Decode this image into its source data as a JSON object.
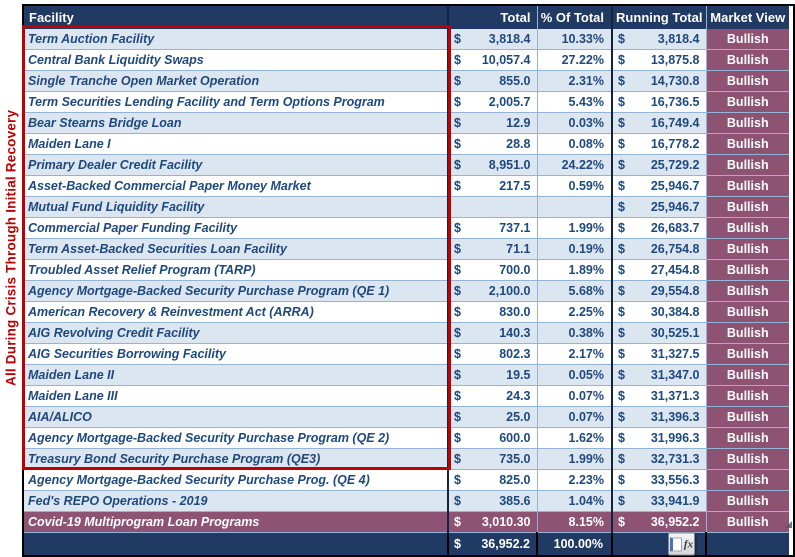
{
  "side_label": "All During Crisis Through Initial Recovery",
  "table": {
    "columns": {
      "facility": "Facility",
      "total": "Total",
      "pct": "% Of Total",
      "running": "Running Total",
      "view": "Market View"
    },
    "rows": [
      {
        "facility": "Term Auction Facility",
        "cur": "$",
        "total": "3,818.4",
        "pct": "10.33%",
        "rcur": "$",
        "running": "3,818.4",
        "view": "Bullish"
      },
      {
        "facility": "Central Bank Liquidity Swaps",
        "cur": "$",
        "total": "10,057.4",
        "pct": "27.22%",
        "rcur": "$",
        "running": "13,875.8",
        "view": "Bullish"
      },
      {
        "facility": "Single Tranche Open Market Operation",
        "cur": "$",
        "total": "855.0",
        "pct": "2.31%",
        "rcur": "$",
        "running": "14,730.8",
        "view": "Bullish"
      },
      {
        "facility": "Term Securities Lending Facility and Term Options Program",
        "cur": "$",
        "total": "2,005.7",
        "pct": "5.43%",
        "rcur": "$",
        "running": "16,736.5",
        "view": "Bullish"
      },
      {
        "facility": "Bear Stearns Bridge Loan",
        "cur": "$",
        "total": "12.9",
        "pct": "0.03%",
        "rcur": "$",
        "running": "16,749.4",
        "view": "Bullish"
      },
      {
        "facility": "Maiden Lane I",
        "cur": "$",
        "total": "28.8",
        "pct": "0.08%",
        "rcur": "$",
        "running": "16,778.2",
        "view": "Bullish"
      },
      {
        "facility": "Primary Dealer Credit Facility",
        "cur": "$",
        "total": "8,951.0",
        "pct": "24.22%",
        "rcur": "$",
        "running": "25,729.2",
        "view": "Bullish"
      },
      {
        "facility": "Asset-Backed Commercial Paper Money Market",
        "cur": "$",
        "total": "217.5",
        "pct": "0.59%",
        "rcur": "$",
        "running": "25,946.7",
        "view": "Bullish"
      },
      {
        "facility": "Mutual Fund Liquidity Facility",
        "cur": "",
        "total": "",
        "pct": "",
        "rcur": "$",
        "running": "25,946.7",
        "view": "Bullish"
      },
      {
        "facility": "Commercial Paper Funding Facility",
        "cur": "$",
        "total": "737.1",
        "pct": "1.99%",
        "rcur": "$",
        "running": "26,683.7",
        "view": "Bullish"
      },
      {
        "facility": "Term Asset-Backed Securities Loan Facility",
        "cur": "$",
        "total": "71.1",
        "pct": "0.19%",
        "rcur": "$",
        "running": "26,754.8",
        "view": "Bullish"
      },
      {
        "facility": "Troubled Asset Relief Program (TARP)",
        "cur": "$",
        "total": "700.0",
        "pct": "1.89%",
        "rcur": "$",
        "running": "27,454.8",
        "view": "Bullish"
      },
      {
        "facility": "Agency Mortgage-Backed Security Purchase Program (QE 1)",
        "cur": "$",
        "total": "2,100.0",
        "pct": "5.68%",
        "rcur": "$",
        "running": "29,554.8",
        "view": "Bullish"
      },
      {
        "facility": "American Recovery & Reinvestment Act (ARRA)",
        "cur": "$",
        "total": "830.0",
        "pct": "2.25%",
        "rcur": "$",
        "running": "30,384.8",
        "view": "Bullish"
      },
      {
        "facility": "AIG Revolving Credit Facility",
        "cur": "$",
        "total": "140.3",
        "pct": "0.38%",
        "rcur": "$",
        "running": "30,525.1",
        "view": "Bullish"
      },
      {
        "facility": "AIG Securities Borrowing Facility",
        "cur": "$",
        "total": "802.3",
        "pct": "2.17%",
        "rcur": "$",
        "running": "31,327.5",
        "view": "Bullish"
      },
      {
        "facility": "Maiden Lane II",
        "cur": "$",
        "total": "19.5",
        "pct": "0.05%",
        "rcur": "$",
        "running": "31,347.0",
        "view": "Bullish"
      },
      {
        "facility": "Maiden Lane III",
        "cur": "$",
        "total": "24.3",
        "pct": "0.07%",
        "rcur": "$",
        "running": "31,371.3",
        "view": "Bullish"
      },
      {
        "facility": "AIA/ALICO",
        "cur": "$",
        "total": "25.0",
        "pct": "0.07%",
        "rcur": "$",
        "running": "31,396.3",
        "view": "Bullish"
      },
      {
        "facility": "Agency Mortgage-Backed Security Purchase Program (QE 2)",
        "cur": "$",
        "total": "600.0",
        "pct": "1.62%",
        "rcur": "$",
        "running": "31,996.3",
        "view": "Bullish"
      },
      {
        "facility": "Treasury Bond Security Purchase Program (QE3)",
        "cur": "$",
        "total": "735.0",
        "pct": "1.99%",
        "rcur": "$",
        "running": "32,731.3",
        "view": "Bullish"
      },
      {
        "facility": "Agency Mortgage-Backed Security Purchase Prog. (QE 4)",
        "cur": "$",
        "total": "825.0",
        "pct": "2.23%",
        "rcur": "$",
        "running": "33,556.3",
        "view": "Bullish"
      },
      {
        "facility": "Fed's REPO Operations - 2019",
        "cur": "$",
        "total": "385.6",
        "pct": "1.04%",
        "rcur": "$",
        "running": "33,941.9",
        "view": "Bullish"
      },
      {
        "facility": "Covid-19 Multiprogram Loan Programs",
        "cur": "$",
        "total": "3,010.30",
        "pct": "8.15%",
        "rcur": "$",
        "running": "36,952.2",
        "view": "Bullish",
        "highlight": true
      }
    ],
    "total_row": {
      "currency": "$",
      "total": "36,952.2",
      "pct": "100.00%"
    }
  },
  "icons": {
    "fx_button": "fx"
  },
  "colors": {
    "header_navy": "#203A64",
    "stripe_blue": "#DCE6F1",
    "gridline_blue": "#95B3D7",
    "text_blue": "#1F497D",
    "market_view_maroon": "#8E5272",
    "group_outline_red": "#C00000"
  }
}
